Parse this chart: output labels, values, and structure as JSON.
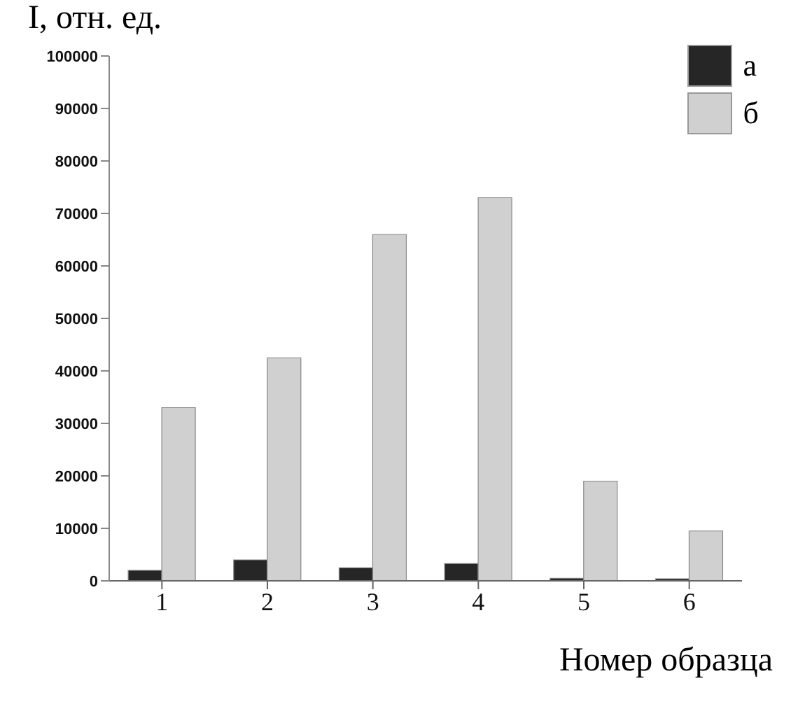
{
  "chart_data": {
    "type": "bar",
    "ylabel": "I, отн. ед.",
    "xlabel": "Номер образца",
    "categories": [
      "1",
      "2",
      "3",
      "4",
      "5",
      "6"
    ],
    "series": [
      {
        "name": "а",
        "color": "#262626",
        "values": [
          2000,
          4000,
          2500,
          3300,
          500,
          400
        ]
      },
      {
        "name": "б",
        "color": "#d0d0d0",
        "values": [
          33000,
          42500,
          66000,
          73000,
          19000,
          9500
        ]
      }
    ],
    "ylim": [
      0,
      100000
    ],
    "yticks": [
      0,
      10000,
      20000,
      30000,
      40000,
      50000,
      60000,
      70000,
      80000,
      90000,
      100000
    ],
    "grid": false,
    "legend": "top right"
  }
}
